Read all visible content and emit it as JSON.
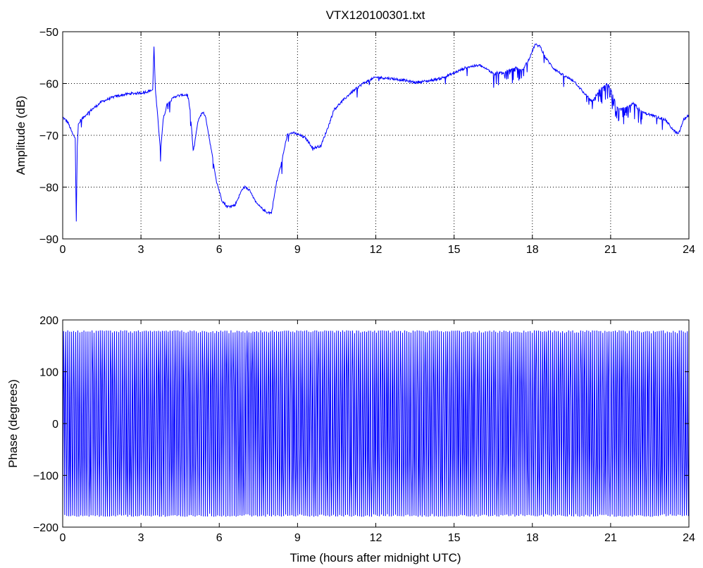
{
  "figure_title": "VTX120100301.txt",
  "chart_data": [
    {
      "type": "line",
      "title": "VTX120100301.txt",
      "xlabel": "",
      "ylabel": "Amplitude (dB)",
      "xlim": [
        0,
        24
      ],
      "ylim": [
        -90,
        -50
      ],
      "xticks": [
        0,
        3,
        6,
        9,
        12,
        15,
        18,
        21,
        24
      ],
      "yticks": [
        -90,
        -80,
        -70,
        -60,
        -50
      ],
      "xtick_labels": [
        "0",
        "3",
        "6",
        "9",
        "12",
        "15",
        "18",
        "21",
        "24"
      ],
      "ytick_labels": [
        "−90",
        "−80",
        "−70",
        "−60",
        "−50"
      ],
      "grid": true,
      "color": "#0000ff",
      "series": [
        {
          "x": [
            0,
            0.2,
            0.4,
            0.48,
            0.52,
            0.56,
            0.6,
            0.7,
            1.0,
            1.5,
            2.0,
            2.5,
            3.0,
            3.3,
            3.45,
            3.5,
            3.55,
            3.6,
            3.7,
            3.75,
            3.85,
            4.0,
            4.3,
            4.6,
            4.8,
            4.9,
            5.0,
            5.05,
            5.1,
            5.2,
            5.3,
            5.4,
            5.5,
            5.7,
            5.9,
            6.1,
            6.3,
            6.6,
            6.9,
            7.0,
            7.2,
            7.4,
            7.6,
            7.8,
            8.0,
            8.1,
            8.2,
            8.4,
            8.6,
            8.8,
            9.0,
            9.3,
            9.6,
            9.9,
            10.2,
            10.4,
            10.6,
            11.0,
            11.5,
            12.0,
            12.5,
            13.0,
            13.5,
            14.0,
            14.5,
            15.0,
            15.5,
            16.0,
            16.5,
            17.0,
            17.3,
            17.6,
            17.9,
            18.1,
            18.3,
            18.5,
            18.8,
            19.2,
            19.6,
            20.0,
            20.3,
            20.6,
            20.9,
            21.1,
            21.3,
            21.6,
            21.9,
            22.2,
            22.5,
            22.8,
            23.1,
            23.4,
            23.6,
            23.8,
            24.0
          ],
          "y": [
            -66.5,
            -67.5,
            -70,
            -70.5,
            -86,
            -72,
            -68,
            -67,
            -65.5,
            -63.5,
            -62.5,
            -62,
            -61.8,
            -61.5,
            -61.2,
            -52.8,
            -61,
            -64,
            -70,
            -73,
            -67,
            -64,
            -62.5,
            -62.2,
            -62.2,
            -66,
            -73,
            -72,
            -70,
            -67,
            -66,
            -65.5,
            -67,
            -73,
            -79,
            -82.5,
            -83.8,
            -83.5,
            -80.2,
            -80,
            -80.8,
            -83,
            -84,
            -84.8,
            -85,
            -82,
            -79,
            -75,
            -70,
            -69.5,
            -69.8,
            -70.5,
            -72.5,
            -72,
            -68,
            -65,
            -64,
            -62,
            -60,
            -58.8,
            -59,
            -59.3,
            -59.8,
            -59.5,
            -59,
            -58,
            -56.8,
            -56.5,
            -58,
            -57.8,
            -56.8,
            -57.5,
            -55,
            -52.5,
            -52.8,
            -55,
            -57,
            -58.5,
            -59.5,
            -62,
            -63.5,
            -61,
            -60,
            -62.5,
            -65,
            -64.5,
            -63.8,
            -65.5,
            -66,
            -66.5,
            -67,
            -69,
            -69.8,
            -67,
            -66
          ]
        }
      ]
    },
    {
      "type": "line",
      "title": "",
      "xlabel": "Time (hours after midnight UTC)",
      "ylabel": "Phase (degrees)",
      "xlim": [
        0,
        24
      ],
      "ylim": [
        -200,
        200
      ],
      "xticks": [
        0,
        3,
        6,
        9,
        12,
        15,
        18,
        21,
        24
      ],
      "yticks": [
        -200,
        -100,
        0,
        100,
        200
      ],
      "xtick_labels": [
        "0",
        "3",
        "6",
        "9",
        "12",
        "15",
        "18",
        "21",
        "24"
      ],
      "ytick_labels": [
        "−200",
        "−100",
        "0",
        "100",
        "200"
      ],
      "grid": false,
      "color": "#0000ff",
      "series": [
        {
          "pattern": "sawtooth-wrapping",
          "range": [
            -180,
            180
          ],
          "cycles": 310
        }
      ]
    }
  ]
}
